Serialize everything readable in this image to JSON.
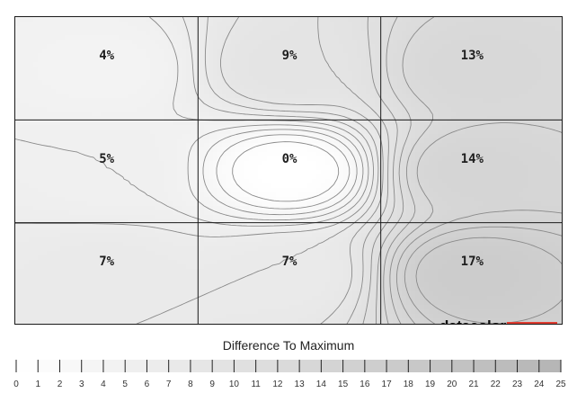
{
  "chart_data": {
    "type": "heatmap",
    "title": "",
    "rows": 3,
    "cols": 3,
    "cells": [
      [
        "4%",
        "9%",
        "13%"
      ],
      [
        "5%",
        "0%",
        "14%"
      ],
      [
        "7%",
        "7%",
        "17%"
      ]
    ],
    "values": [
      [
        4,
        9,
        13
      ],
      [
        5,
        0,
        14
      ],
      [
        7,
        7,
        17
      ]
    ],
    "contour_lines": true,
    "colorscale": {
      "title": "Difference To Maximum",
      "ticks": [
        0,
        1,
        2,
        3,
        4,
        5,
        6,
        7,
        8,
        9,
        10,
        11,
        12,
        13,
        14,
        15,
        16,
        17,
        18,
        19,
        20,
        21,
        22,
        23,
        24,
        25
      ],
      "min_color": "#ffffff",
      "max_color": "#b4b4b4"
    }
  },
  "brand": {
    "logo_text": "datacolor",
    "accent_color": "#e03c31"
  }
}
